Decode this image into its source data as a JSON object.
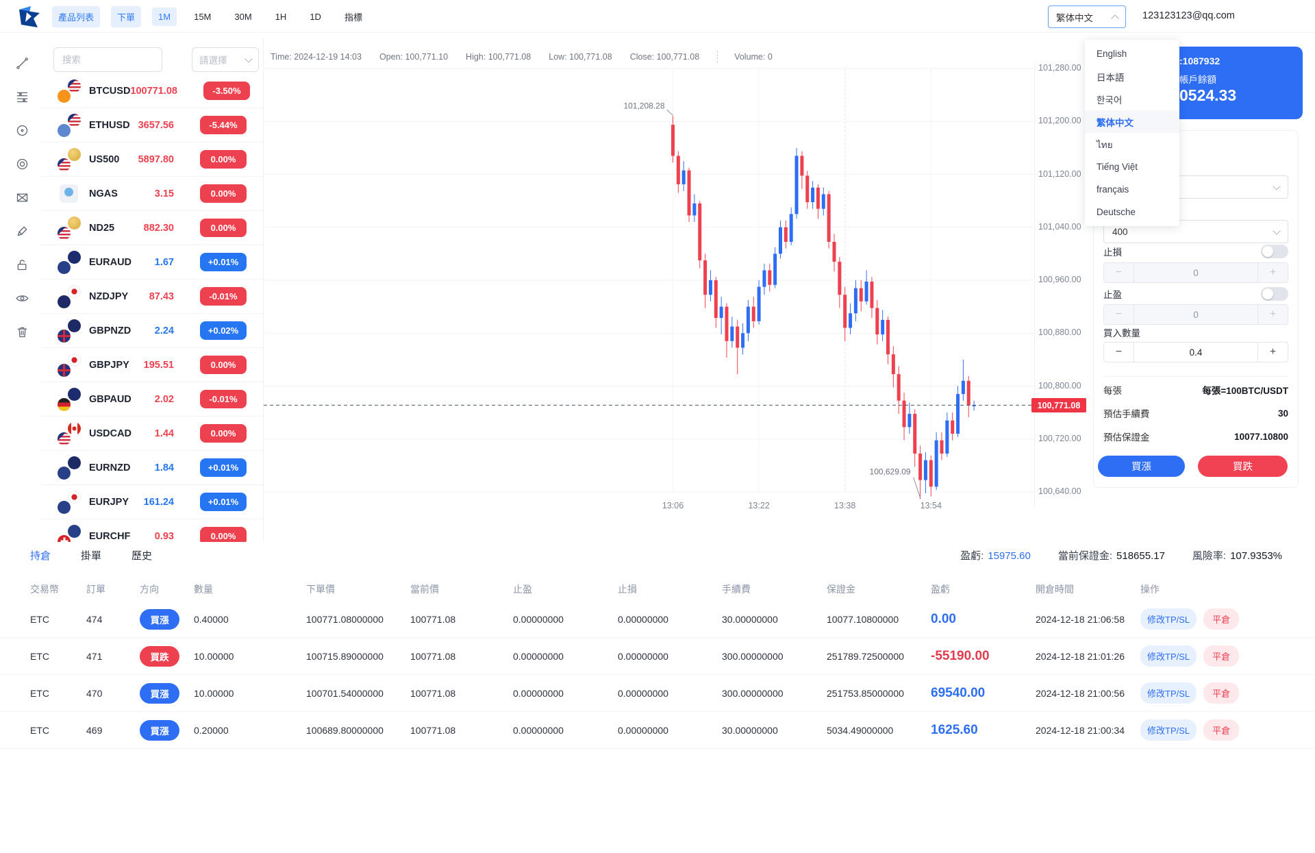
{
  "top_bar": {
    "nav": [
      {
        "label": "產品列表",
        "active": true
      },
      {
        "label": "下單",
        "active": true
      },
      {
        "label": "1M",
        "active": true
      },
      {
        "label": "15M",
        "active": false
      },
      {
        "label": "30M",
        "active": false
      },
      {
        "label": "1H",
        "active": false
      },
      {
        "label": "1D",
        "active": false
      },
      {
        "label": "指標",
        "active": false
      }
    ],
    "language_value": "繁体中文",
    "email": "123123123@qq.com"
  },
  "sidebar": {
    "tools": [
      "trendline",
      "fib-retracement",
      "circle",
      "concentric-circles",
      "xabcd-pattern",
      "brush",
      "unlock",
      "eye",
      "trash"
    ]
  },
  "watchlist": {
    "search_placeholder": "搜索",
    "filter_placeholder": "請選擇",
    "items": [
      {
        "symbol": "BTCUSD",
        "price": "100771.08",
        "change": "-3.50%",
        "dir": "down",
        "flags": [
          "btc",
          "us"
        ]
      },
      {
        "symbol": "ETHUSD",
        "price": "3657.56",
        "change": "-5.44%",
        "dir": "down",
        "flags": [
          "eth",
          "us"
        ]
      },
      {
        "symbol": "US500",
        "price": "5897.80",
        "change": "0.00%",
        "dir": "down",
        "flags": [
          "us",
          "gold"
        ]
      },
      {
        "symbol": "NGAS",
        "price": "3.15",
        "change": "0.00%",
        "dir": "down",
        "flags": [
          "gas"
        ]
      },
      {
        "symbol": "ND25",
        "price": "882.30",
        "change": "0.00%",
        "dir": "down",
        "flags": [
          "us",
          "gold"
        ]
      },
      {
        "symbol": "EURAUD",
        "price": "1.67",
        "change": "+0.01%",
        "dir": "up",
        "flags": [
          "eu",
          "au"
        ]
      },
      {
        "symbol": "NZDJPY",
        "price": "87.43",
        "change": "-0.01%",
        "dir": "down",
        "flags": [
          "nz",
          "jp"
        ]
      },
      {
        "symbol": "GBPNZD",
        "price": "2.24",
        "change": "+0.02%",
        "dir": "up",
        "flags": [
          "gb",
          "nz"
        ]
      },
      {
        "symbol": "GBPJPY",
        "price": "195.51",
        "change": "0.00%",
        "dir": "down",
        "flags": [
          "gb",
          "jp"
        ]
      },
      {
        "symbol": "GBPAUD",
        "price": "2.02",
        "change": "-0.01%",
        "dir": "down",
        "flags": [
          "de",
          "au"
        ]
      },
      {
        "symbol": "USDCAD",
        "price": "1.44",
        "change": "0.00%",
        "dir": "down",
        "flags": [
          "us",
          "ca"
        ]
      },
      {
        "symbol": "EURNZD",
        "price": "1.84",
        "change": "+0.01%",
        "dir": "up",
        "flags": [
          "eu",
          "nz"
        ]
      },
      {
        "symbol": "EURJPY",
        "price": "161.24",
        "change": "+0.01%",
        "dir": "up",
        "flags": [
          "eu",
          "jp"
        ]
      },
      {
        "symbol": "EURCHF",
        "price": "0.93",
        "change": "0.00%",
        "dir": "down",
        "flags": [
          "ch",
          "eu"
        ]
      }
    ]
  },
  "chart_header": {
    "items": [
      {
        "label": "Time:",
        "value": "2024-12-19 14:03"
      },
      {
        "label": "Open:",
        "value": "100,771.10"
      },
      {
        "label": "High:",
        "value": "100,771.08"
      },
      {
        "label": "Low:",
        "value": "100,771.08"
      },
      {
        "label": "Close:",
        "value": "100,771.08"
      },
      {
        "label": "Volume:",
        "value": "0"
      }
    ]
  },
  "chart_data": {
    "type": "candlestick",
    "symbol": "BTCUSD",
    "interval": "1M",
    "y_ticks": [
      101280,
      101200,
      101120,
      101040,
      100960,
      100880,
      100800,
      100720,
      100640
    ],
    "y_tick_labels": [
      "101,280.00",
      "101,200.00",
      "101,120.00",
      "101,040.00",
      "100,960.00",
      "100,880.00",
      "100,800.00",
      "100,720.00",
      "100,640.00"
    ],
    "x_tick_labels": [
      "13:06",
      "13:22",
      "13:38",
      "13:54"
    ],
    "x_tick_indices": [
      0,
      16,
      32,
      48
    ],
    "current_price": 100771.08,
    "current_price_label": "100,771.08",
    "up_color": "#2d6ef5",
    "down_color": "#ee4150",
    "annotations": [
      {
        "type": "high",
        "index": 0,
        "text": "101,208.28"
      },
      {
        "type": "low",
        "index": 46,
        "text": "100,629.09"
      }
    ],
    "candles": [
      [
        101195,
        101208.28,
        101138,
        101148
      ],
      [
        101148,
        101155,
        101092,
        101105
      ],
      [
        101105,
        101140,
        101095,
        101126
      ],
      [
        101126,
        101130,
        101048,
        101058
      ],
      [
        101058,
        101090,
        101048,
        101076
      ],
      [
        101076,
        101080,
        100978,
        100990
      ],
      [
        100990,
        101000,
        100918,
        100938
      ],
      [
        100938,
        100975,
        100928,
        100960
      ],
      [
        100960,
        100965,
        100888,
        100903
      ],
      [
        100903,
        100935,
        100878,
        100920
      ],
      [
        100920,
        100925,
        100843,
        100868
      ],
      [
        100868,
        100905,
        100858,
        100890
      ],
      [
        100890,
        100900,
        100818,
        100858
      ],
      [
        100858,
        100895,
        100848,
        100880
      ],
      [
        100880,
        100930,
        100868,
        100920
      ],
      [
        100920,
        100935,
        100888,
        100898
      ],
      [
        100898,
        100960,
        100893,
        100950
      ],
      [
        100950,
        100985,
        100938,
        100975
      ],
      [
        100975,
        100985,
        100943,
        100953
      ],
      [
        100953,
        101010,
        100948,
        101000
      ],
      [
        101000,
        101050,
        100993,
        101040
      ],
      [
        101040,
        101050,
        101008,
        101018
      ],
      [
        101018,
        101070,
        101013,
        101060
      ],
      [
        101060,
        101160,
        101053,
        101148
      ],
      [
        101148,
        101155,
        101098,
        101118
      ],
      [
        101118,
        101125,
        101068,
        101078
      ],
      [
        101078,
        101110,
        101068,
        101100
      ],
      [
        101100,
        101105,
        101053,
        101068
      ],
      [
        101068,
        101100,
        101058,
        101090
      ],
      [
        101090,
        101095,
        101008,
        101018
      ],
      [
        101018,
        101030,
        100973,
        100988
      ],
      [
        100988,
        100995,
        100918,
        100938
      ],
      [
        100938,
        100950,
        100868,
        100888
      ],
      [
        100888,
        100925,
        100878,
        100910
      ],
      [
        100910,
        100960,
        100898,
        100948
      ],
      [
        100948,
        100960,
        100913,
        100928
      ],
      [
        100928,
        100975,
        100923,
        100958
      ],
      [
        100958,
        100965,
        100903,
        100918
      ],
      [
        100918,
        100930,
        100863,
        100878
      ],
      [
        100878,
        100915,
        100868,
        100900
      ],
      [
        100900,
        100905,
        100833,
        100848
      ],
      [
        100848,
        100860,
        100798,
        100818
      ],
      [
        100818,
        100830,
        100758,
        100778
      ],
      [
        100778,
        100790,
        100718,
        100738
      ],
      [
        100738,
        100775,
        100728,
        100758
      ],
      [
        100758,
        100765,
        100678,
        100698
      ],
      [
        100698,
        100710,
        100629.09,
        100658
      ],
      [
        100658,
        100700,
        100638,
        100688
      ],
      [
        100688,
        100695,
        100633,
        100648
      ],
      [
        100648,
        100730,
        100643,
        100718
      ],
      [
        100718,
        100730,
        100688,
        100698
      ],
      [
        100698,
        100760,
        100693,
        100748
      ],
      [
        100748,
        100760,
        100718,
        100728
      ],
      [
        100728,
        100800,
        100723,
        100788
      ],
      [
        100788,
        100840,
        100778,
        100808
      ],
      [
        100808,
        100815,
        100753,
        100771
      ],
      [
        100771,
        100778,
        100763,
        100771.08
      ]
    ]
  },
  "account_card": {
    "id_fragment": ":1087932",
    "balance_label": "帳戶餘額",
    "balance_fragment": "0524.33"
  },
  "language_menu": {
    "options": [
      "English",
      "日本語",
      "한국어",
      "繁体中文",
      "ไทย",
      "Tiếng Việt",
      "français",
      "Deutsche"
    ],
    "active": "繁体中文"
  },
  "order_panel": {
    "leverage_value": "400",
    "stop_loss_label": "止損",
    "stop_loss_value": "0",
    "take_profit_label": "止盈",
    "take_profit_value": "0",
    "quantity_label": "買入數量",
    "quantity_value": "0.4",
    "minus_label": "−",
    "plus_label": "+",
    "per_lot_label": "每張",
    "per_lot_value": "每張=100BTC/USDT",
    "fee_label": "預估手續費",
    "fee_value": "30",
    "margin_label": "預估保證金",
    "margin_value": "10077.10800",
    "buy_up_label": "買漲",
    "buy_down_label": "買跌"
  },
  "positions": {
    "tabs": [
      {
        "label": "持倉",
        "active": true
      },
      {
        "label": "掛單",
        "active": false
      },
      {
        "label": "歷史",
        "active": false
      }
    ],
    "stats": {
      "pnl_label": "盈虧:",
      "pnl_value": "15975.60",
      "margin_label": "當前保證金:",
      "margin_value": "518655.17",
      "risk_label": "風險率:",
      "risk_value": "107.9353%"
    },
    "columns": [
      "交易幣",
      "訂單",
      "方向",
      "數量",
      "下單價",
      "當前價",
      "止盈",
      "止損",
      "手續費",
      "保證金",
      "盈虧",
      "開倉時間",
      "操作"
    ],
    "action_modify": "修改TP/SL",
    "action_close": "平倉",
    "rows": [
      {
        "currency": "ETC",
        "order_id": "474",
        "direction": "買漲",
        "dir": "up",
        "qty": "0.40000",
        "order_price": "100771.08000000",
        "current_price": "100771.08",
        "tp": "0.00000000",
        "sl": "0.00000000",
        "fee": "30.00000000",
        "margin": "10077.10800000",
        "pnl": "0.00",
        "pnl_dir": "up",
        "open_time": "2024-12-18 21:06:58"
      },
      {
        "currency": "ETC",
        "order_id": "471",
        "direction": "買跌",
        "dir": "down",
        "qty": "10.00000",
        "order_price": "100715.89000000",
        "current_price": "100771.08",
        "tp": "0.00000000",
        "sl": "0.00000000",
        "fee": "300.00000000",
        "margin": "251789.72500000",
        "pnl": "-55190.00",
        "pnl_dir": "down",
        "open_time": "2024-12-18 21:01:26"
      },
      {
        "currency": "ETC",
        "order_id": "470",
        "direction": "買漲",
        "dir": "up",
        "qty": "10.00000",
        "order_price": "100701.54000000",
        "current_price": "100771.08",
        "tp": "0.00000000",
        "sl": "0.00000000",
        "fee": "300.00000000",
        "margin": "251753.85000000",
        "pnl": "69540.00",
        "pnl_dir": "up",
        "open_time": "2024-12-18 21:00:56"
      },
      {
        "currency": "ETC",
        "order_id": "469",
        "direction": "買漲",
        "dir": "up",
        "qty": "0.20000",
        "order_price": "100689.80000000",
        "current_price": "100771.08",
        "tp": "0.00000000",
        "sl": "0.00000000",
        "fee": "30.00000000",
        "margin": "5034.49000000",
        "pnl": "1625.60",
        "pnl_dir": "up",
        "open_time": "2024-12-18 21:00:34"
      }
    ]
  }
}
